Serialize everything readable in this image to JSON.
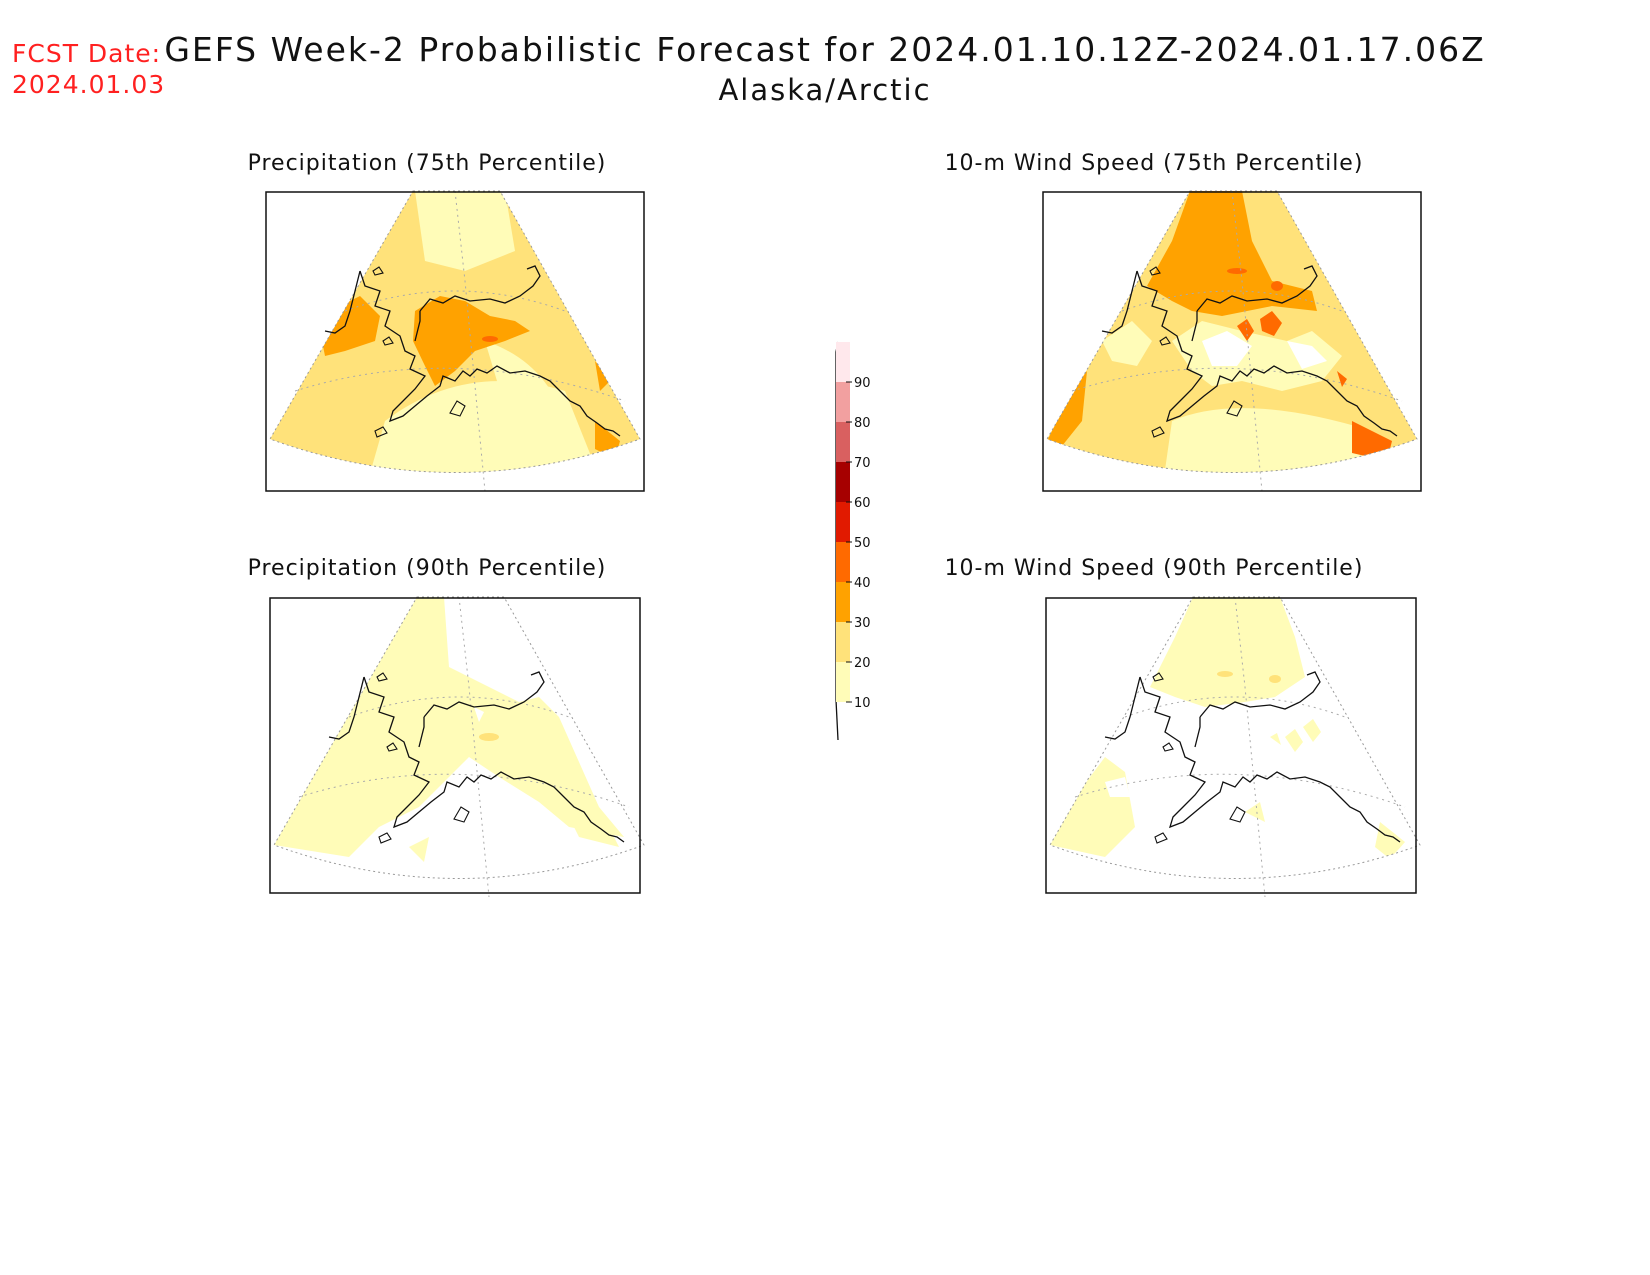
{
  "header": {
    "fcst_label": "FCST Date:",
    "fcst_date": "2024.01.03",
    "title": "GEFS Week-2 Probabilistic Forecast for 2024.01.10.12Z-2024.01.17.06Z",
    "subtitle": "Alaska/Arctic"
  },
  "panels": [
    {
      "title": "Precipitation (75th Percentile)"
    },
    {
      "title": "10-m Wind Speed (75th Percentile)"
    },
    {
      "title": "Precipitation (90th Percentile)"
    },
    {
      "title": "10-m Wind Speed (90th Percentile)"
    }
  ],
  "colorbar": {
    "levels": [
      "10",
      "20",
      "30",
      "40",
      "50",
      "60",
      "70",
      "80",
      "90"
    ],
    "colors": [
      "#fffcb8",
      "#ffe27a",
      "#ffa200",
      "#ff6a00",
      "#e11a00",
      "#a60000",
      "#d96060",
      "#f2a0a0",
      "#ffe8ec"
    ]
  }
}
